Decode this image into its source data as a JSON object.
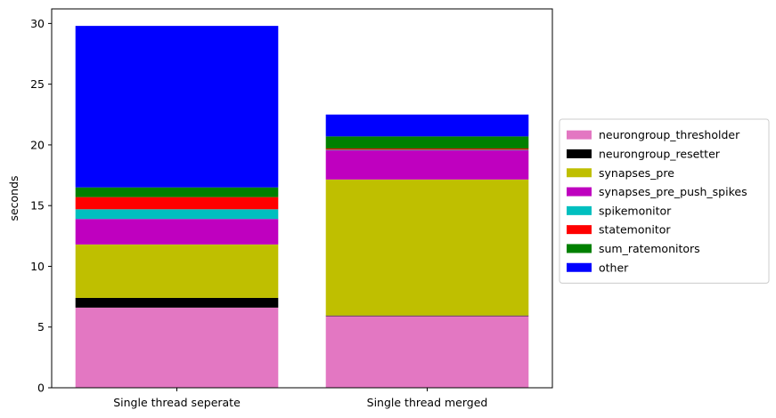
{
  "chart_data": {
    "type": "bar",
    "stacked": true,
    "categories": [
      "Single thread seperate",
      "Single thread merged"
    ],
    "ylabel": "seconds",
    "xlabel": "",
    "title": "",
    "ylim": [
      0,
      31.2
    ],
    "yticks": [
      0,
      5,
      10,
      15,
      20,
      25,
      30
    ],
    "grid": false,
    "legend_position": "outside-right",
    "series": [
      {
        "name": "neurongroup_thresholder",
        "color": "#e377c2",
        "values": [
          6.6,
          5.9
        ]
      },
      {
        "name": "neurongroup_resetter",
        "color": "#000000",
        "values": [
          0.8,
          0.05
        ]
      },
      {
        "name": "synapses_pre",
        "color": "#bfbf00",
        "values": [
          4.4,
          11.2
        ]
      },
      {
        "name": "synapses_pre_push_spikes",
        "color": "#bf00bf",
        "values": [
          2.1,
          2.4
        ]
      },
      {
        "name": "spikemonitor",
        "color": "#00bfbf",
        "values": [
          0.8,
          0.05
        ]
      },
      {
        "name": "statemonitor",
        "color": "#ff0000",
        "values": [
          1.0,
          0.1
        ]
      },
      {
        "name": "sum_ratemonitors",
        "color": "#008000",
        "values": [
          0.8,
          1.0
        ]
      },
      {
        "name": "other",
        "color": "#0000ff",
        "values": [
          13.3,
          1.8
        ]
      }
    ]
  }
}
